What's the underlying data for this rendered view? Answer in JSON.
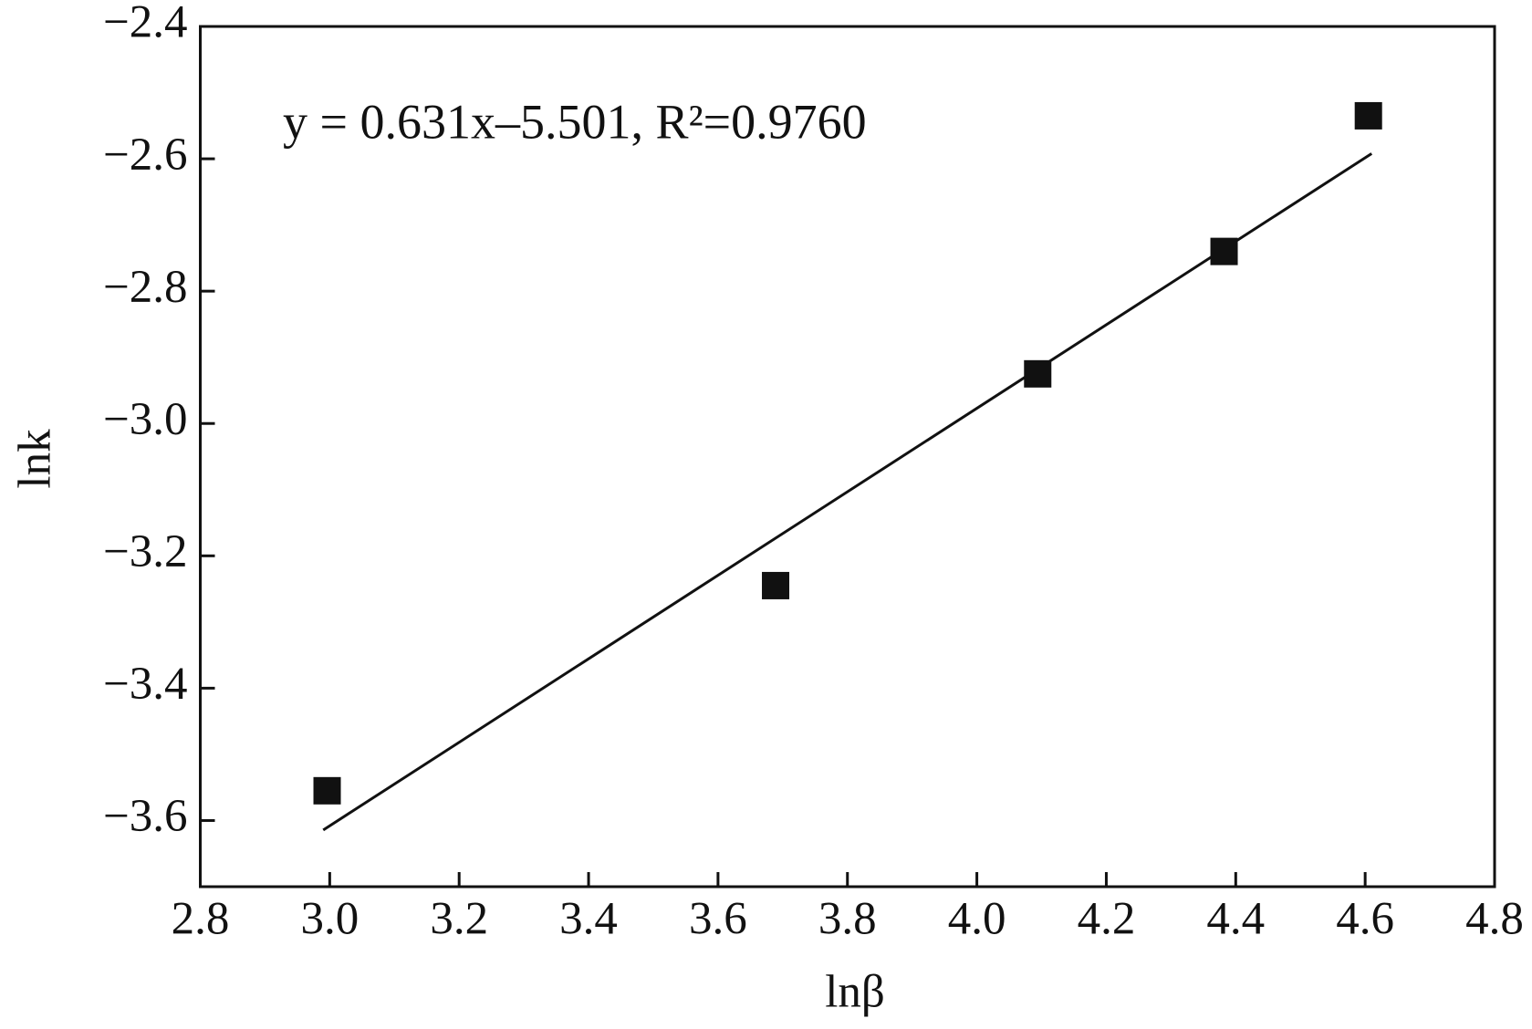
{
  "chart_data": {
    "type": "scatter",
    "x_label": "lnβ",
    "y_label": "lnk",
    "annotation": "y = 0.631x–5.501, R²=0.9760",
    "x": [
      2.996,
      3.689,
      4.094,
      4.382,
      4.605
    ],
    "values": [
      -3.555,
      -3.245,
      -2.925,
      -2.74,
      -2.535
    ],
    "color": "#111111",
    "fit": {
      "slope": 0.631,
      "intercept": -5.501,
      "x_range": [
        2.99,
        4.61
      ]
    },
    "xlim": [
      2.8,
      4.8
    ],
    "xticks": [
      2.8,
      {
        "value": 3,
        "label": "3.0"
      },
      3.2,
      3.4,
      3.6,
      3.8,
      {
        "value": 4,
        "label": "4.0"
      },
      4.2,
      4.4,
      4.6,
      4.8
    ],
    "ylim": [
      -3.7,
      -2.4
    ],
    "yticks": [
      {
        "value": -2.4,
        "label": "−2.4"
      },
      {
        "value": -2.6,
        "label": "−2.6"
      },
      {
        "value": -2.8,
        "label": "−2.8"
      },
      {
        "value": -3,
        "label": "−3.0"
      },
      {
        "value": -3.2,
        "label": "−3.2"
      },
      {
        "value": -3.4,
        "label": "−3.4"
      },
      {
        "value": -3.6,
        "label": "−3.6"
      }
    ],
    "grid": false
  }
}
